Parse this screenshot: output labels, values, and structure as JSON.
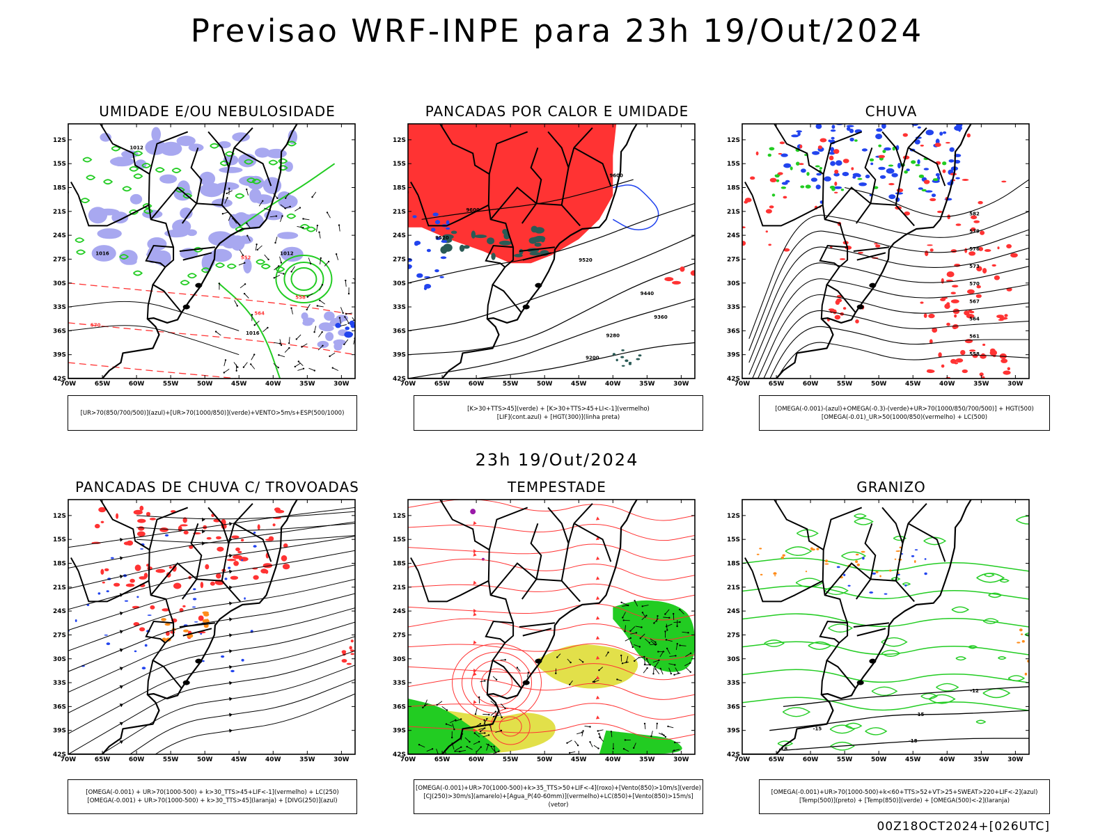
{
  "header": {
    "title": "Previsao WRF-INPE  para 23h 19/Out/2024",
    "mid_title": "23h 19/Out/2024",
    "footer": "00Z18OCT2024+[026UTC]"
  },
  "axes": {
    "lat_labels": [
      "12S",
      "15S",
      "18S",
      "21S",
      "24S",
      "27S",
      "30S",
      "33S",
      "36S",
      "39S",
      "42S"
    ],
    "lon_labels": [
      "70W",
      "65W",
      "60W",
      "55W",
      "50W",
      "45W",
      "40W",
      "35W",
      "30W"
    ]
  },
  "colors": {
    "green": "#22cc22",
    "red": "#ff3333",
    "blue": "#2244ee",
    "lavender": "#a8a8f0",
    "orange": "#ff8c1a",
    "yellow": "#e2e04a",
    "purple": "#9a1aa8",
    "darkteal": "#2a5a55"
  },
  "panels": [
    {
      "id": "umidade",
      "title": "UMIDADE E/OU NEBULOSIDADE",
      "legend": [
        "[UR>70(850/700/500)](azul)+[UR>70(1000/850)](verde)+VENTO>5m/s+ESP(500/1000)"
      ],
      "contour_labels": [
        "1012",
        "1016",
        "570",
        "564",
        "558",
        "552"
      ]
    },
    {
      "id": "pancadas-calor",
      "title": "PANCADAS POR CALOR E UMIDADE",
      "legend": [
        "[K>30+TTS>45](verde) + [K>30+TTS>45+LI<-1](vermelho)",
        "[LIF](cont.azul) + [HGT(300)](linha preta)"
      ],
      "contour_labels": [
        "9600",
        "9520",
        "9440",
        "9360",
        "9280",
        "9200"
      ]
    },
    {
      "id": "chuva",
      "title": "CHUVA",
      "legend": [
        "[OMEGA(-0.001)-(azul)+OMEGA(-0.3)-(verde)+UR>70(1000/850/700/500)] + HGT(500)",
        "[OMEGA(-0.01)_UR>50(1000/850)(vermelho) + LC(500)"
      ],
      "contour_labels": [
        "582",
        "579",
        "576",
        "573",
        "570",
        "567",
        "564",
        "561",
        "558"
      ]
    },
    {
      "id": "trovoadas",
      "title": "PANCADAS DE CHUVA C/ TROVOADAS",
      "legend": [
        "[OMEGA(-0.001) + UR>70(1000-500) + k>30_TTS>45+LIF<-1](vermelho) + LC(250)",
        "[OMEGA(-0.001) + UR>70(1000-500) + k>30_TTS>45](laranja) + [DIVG(250)](azul)"
      ],
      "contour_labels": []
    },
    {
      "id": "tempestade",
      "title": "TEMPESTADE",
      "legend": [
        "[OMEGA(-0.001)+UR>70(1000-500)+k>35_TTS>50+LIF<-4](roxo)+[Vento(850)>10m/s](verde)",
        "[CJ(250)>30m/s](amarelo)+[Agua_P(40-60mm)](vermelho)+LC(850)+[Vento(850)>15m/s](vetor)"
      ],
      "contour_labels": []
    },
    {
      "id": "granizo",
      "title": "GRANIZO",
      "legend": [
        "[OMEGA(-0.001)+UR>70(1000-500)+k<60+TTS>52+VT>25+SWEAT>220+LIF<-2](azul)",
        "[Temp(500)](preto) + [Temp(850)](verde) + [OMEGA(500)<-2](laranja)"
      ],
      "contour_labels": [
        "-12",
        "-15",
        "-18"
      ]
    }
  ],
  "chart_data": {
    "type": "map",
    "title": "Previsao WRF-INPE  para 23h 19/Out/2024",
    "valid_time": "23h 19/Out/2024",
    "run": "00Z18OCT2024+[026UTC]",
    "domain": {
      "lon_range": [
        -70,
        -28
      ],
      "lat_range": [
        -42,
        -10
      ]
    },
    "panels": [
      {
        "name": "UMIDADE E/OU NEBULOSIDADE",
        "isobars_hPa": [
          1012,
          1016
        ],
        "thickness_dam": [
          552,
          558,
          564,
          570,
          576
        ]
      },
      {
        "name": "PANCADAS POR CALOR E UMIDADE",
        "hgt300_m": [
          9200,
          9280,
          9360,
          9440,
          9520,
          9600
        ]
      },
      {
        "name": "CHUVA",
        "hgt500_dam": [
          558,
          561,
          564,
          567,
          570,
          573,
          576,
          579,
          582
        ]
      },
      {
        "name": "PANCADAS DE CHUVA C/ TROVOADAS",
        "fields": [
          "LC(250)",
          "DIVG(250)"
        ]
      },
      {
        "name": "TEMPESTADE",
        "fields": [
          "LC(850)",
          "CJ(250)",
          "Vento(850)"
        ]
      },
      {
        "name": "GRANIZO",
        "temp500_C": [
          -12,
          -15,
          -18
        ]
      }
    ]
  }
}
